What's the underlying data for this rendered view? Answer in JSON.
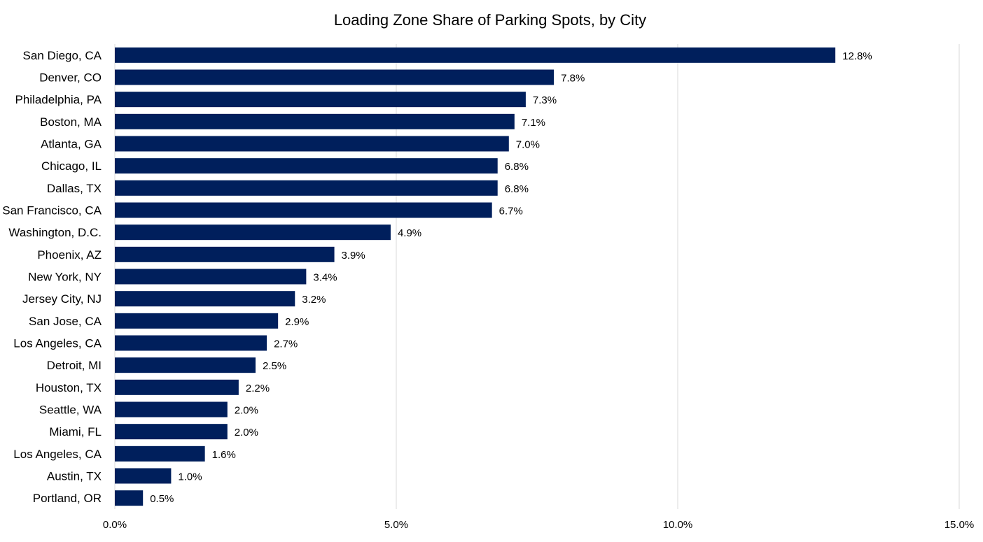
{
  "chart_data": {
    "type": "bar",
    "orientation": "horizontal",
    "title": "Loading Zone Share of Parking Spots, by City",
    "xlabel": "",
    "ylabel": "",
    "categories": [
      "San Diego, CA",
      "Denver, CO",
      "Philadelphia, PA",
      "Boston, MA",
      "Atlanta, GA",
      "Chicago, IL",
      "Dallas, TX",
      "San Francisco, CA",
      "Washington, D.C.",
      "Phoenix, AZ",
      "New York, NY",
      "Jersey City, NJ",
      "San Jose, CA",
      "Los Angeles, CA",
      "Detroit, MI",
      "Houston, TX",
      "Seattle, WA",
      "Miami, FL",
      "Los Angeles, CA",
      "Austin, TX",
      "Portland, OR"
    ],
    "values": [
      12.8,
      7.8,
      7.3,
      7.1,
      7.0,
      6.8,
      6.8,
      6.7,
      4.9,
      3.9,
      3.4,
      3.2,
      2.9,
      2.7,
      2.5,
      2.2,
      2.0,
      2.0,
      1.6,
      1.0,
      0.5
    ],
    "data_labels": [
      "12.8%",
      "7.8%",
      "7.3%",
      "7.1%",
      "7.0%",
      "6.8%",
      "6.8%",
      "6.7%",
      "4.9%",
      "3.9%",
      "3.4%",
      "3.2%",
      "2.9%",
      "2.7%",
      "2.5%",
      "2.2%",
      "2.0%",
      "2.0%",
      "1.6%",
      "1.0%",
      "0.5%"
    ],
    "xlim": [
      0,
      15
    ],
    "x_ticks": [
      0,
      5,
      10,
      15
    ],
    "x_tick_labels": [
      "0.0%",
      "5.0%",
      "10.0%",
      "15.0%"
    ],
    "grid": "vertical",
    "legend": "none",
    "colors": {
      "bar": "#001f5c",
      "grid": "#d9d9d9",
      "text": "#000000"
    }
  }
}
